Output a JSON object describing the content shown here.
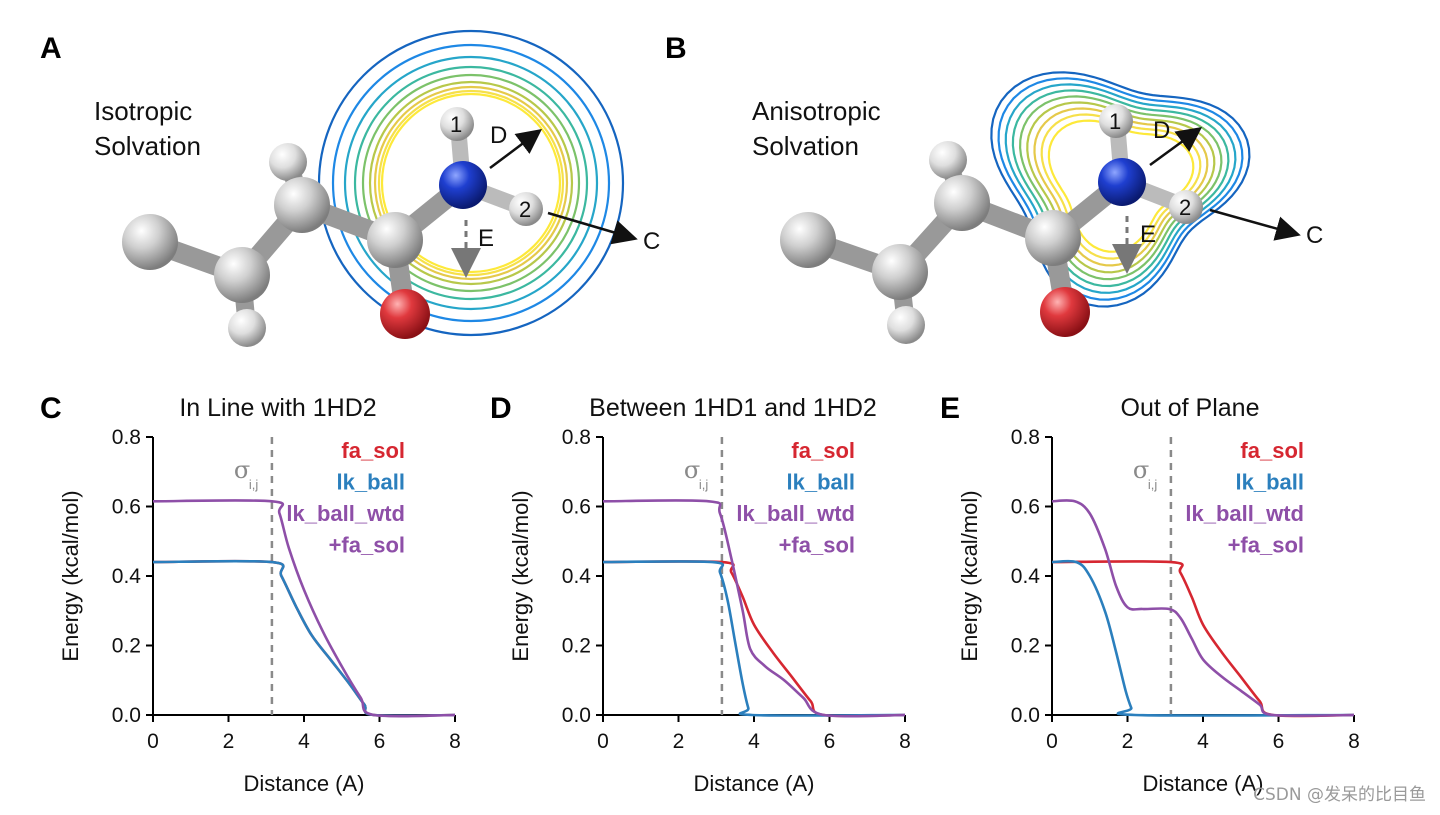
{
  "figure": {
    "panels": {
      "A": {
        "letter": "A",
        "label_line1": "Isotropic",
        "label_line2": "Solvation"
      },
      "B": {
        "letter": "B",
        "label_line1": "Anisotropic",
        "label_line2": "Solvation"
      }
    },
    "atom_numbers": [
      "1",
      "2"
    ],
    "vector_labels": {
      "D": "D",
      "C": "C",
      "E": "E"
    },
    "contour_colors": [
      "#1565c0",
      "#1e88e5",
      "#26a6c9",
      "#3cb8a0",
      "#7cc26a",
      "#b7c84a",
      "#e5c94a",
      "#f6e04a",
      "#fde93a"
    ],
    "atom_colors": {
      "carbon": "#c8c8c8",
      "nitrogen": "#1f3fd0",
      "oxygen": "#e0393e",
      "hydrogen": "#dcdcdc"
    }
  },
  "series_colors": {
    "fa_sol": "#d62731",
    "lk_ball": "#2b7fbd",
    "lk_ball_wtd": "#8e4fa8"
  },
  "sigma_label": {
    "symbol": "σ",
    "subscript": "i,j"
  },
  "legend": [
    "fa_sol",
    "lk_ball",
    "lk_ball_wtd",
    "+fa_sol"
  ],
  "chart_data": [
    {
      "panel": "C",
      "type": "line",
      "title": "In Line with 1HD2",
      "xlabel": "Distance (A)",
      "ylabel": "Energy (kcal/mol)",
      "xlim": [
        0,
        8
      ],
      "ylim": [
        0,
        0.8
      ],
      "xticks": [
        "0",
        "2",
        "4",
        "6",
        "8"
      ],
      "yticks": [
        "0.0",
        "0.2",
        "0.4",
        "0.6",
        "0.8"
      ],
      "sigma_x": 3.15,
      "series": [
        {
          "name": "fa_sol",
          "x": [
            0,
            3.15,
            3.4,
            3.8,
            4.2,
            4.7,
            5.2,
            5.6,
            5.85,
            8
          ],
          "y": [
            0.44,
            0.44,
            0.4,
            0.31,
            0.23,
            0.16,
            0.09,
            0.03,
            0.0,
            0.0
          ]
        },
        {
          "name": "lk_ball",
          "x": [
            0,
            3.15,
            3.4,
            3.8,
            4.2,
            4.7,
            5.2,
            5.6,
            5.85,
            8
          ],
          "y": [
            0.44,
            0.44,
            0.4,
            0.31,
            0.23,
            0.16,
            0.09,
            0.03,
            0.0,
            0.0
          ]
        },
        {
          "name": "lk_ball_wtd +fa_sol",
          "x": [
            0,
            3.15,
            3.35,
            3.6,
            4.0,
            4.5,
            5.0,
            5.5,
            5.85,
            8
          ],
          "y": [
            0.615,
            0.615,
            0.58,
            0.48,
            0.36,
            0.24,
            0.14,
            0.05,
            0.0,
            0.0
          ]
        }
      ]
    },
    {
      "panel": "D",
      "type": "line",
      "title": "Between 1HD1 and 1HD2",
      "xlabel": "Distance (A)",
      "ylabel": "Energy (kcal/mol)",
      "xlim": [
        0,
        8
      ],
      "ylim": [
        0,
        0.8
      ],
      "xticks": [
        "0",
        "2",
        "4",
        "6",
        "8"
      ],
      "yticks": [
        "0.0",
        "0.2",
        "0.4",
        "0.6",
        "0.8"
      ],
      "sigma_x": 3.15,
      "series": [
        {
          "name": "fa_sol",
          "x": [
            0,
            3.15,
            3.4,
            3.7,
            4.0,
            4.5,
            5.0,
            5.5,
            5.85,
            8
          ],
          "y": [
            0.44,
            0.44,
            0.41,
            0.34,
            0.26,
            0.18,
            0.11,
            0.04,
            0.0,
            0.0
          ]
        },
        {
          "name": "lk_ball",
          "x": [
            0,
            2.9,
            3.1,
            3.3,
            3.5,
            3.7,
            3.85,
            3.95,
            8
          ],
          "y": [
            0.44,
            0.44,
            0.41,
            0.33,
            0.21,
            0.09,
            0.02,
            0.0,
            0.0
          ]
        },
        {
          "name": "lk_ball_wtd +fa_sol",
          "x": [
            0,
            2.8,
            3.1,
            3.4,
            3.7,
            3.9,
            4.3,
            4.8,
            5.3,
            5.85,
            8
          ],
          "y": [
            0.615,
            0.615,
            0.58,
            0.45,
            0.3,
            0.19,
            0.14,
            0.1,
            0.05,
            0.0,
            0.0
          ]
        }
      ]
    },
    {
      "panel": "E",
      "type": "line",
      "title": "Out of Plane",
      "xlabel": "Distance (A)",
      "ylabel": "Energy (kcal/mol)",
      "xlim": [
        0,
        8
      ],
      "ylim": [
        0,
        0.8
      ],
      "xticks": [
        "0",
        "2",
        "4",
        "6",
        "8"
      ],
      "yticks": [
        "0.0",
        "0.2",
        "0.4",
        "0.6",
        "0.8"
      ],
      "sigma_x": 3.15,
      "series": [
        {
          "name": "fa_sol",
          "x": [
            0,
            3.15,
            3.4,
            3.7,
            4.0,
            4.5,
            5.0,
            5.5,
            5.85,
            8
          ],
          "y": [
            0.44,
            0.44,
            0.41,
            0.34,
            0.26,
            0.18,
            0.11,
            0.04,
            0.0,
            0.0
          ]
        },
        {
          "name": "lk_ball",
          "x": [
            0,
            0.65,
            1.0,
            1.4,
            1.7,
            1.95,
            2.1,
            2.2,
            8
          ],
          "y": [
            0.44,
            0.44,
            0.4,
            0.3,
            0.18,
            0.07,
            0.02,
            0.0,
            0.0
          ]
        },
        {
          "name": "lk_ball_wtd +fa_sol",
          "x": [
            0,
            0.6,
            1.0,
            1.4,
            1.7,
            2.0,
            2.4,
            3.1,
            3.4,
            3.7,
            4.0,
            4.5,
            5.0,
            5.5,
            5.85,
            8
          ],
          "y": [
            0.615,
            0.615,
            0.58,
            0.48,
            0.37,
            0.31,
            0.305,
            0.305,
            0.28,
            0.22,
            0.16,
            0.11,
            0.07,
            0.03,
            0.0,
            0.0
          ]
        }
      ]
    }
  ],
  "watermark": "CSDN @发呆的比目鱼"
}
